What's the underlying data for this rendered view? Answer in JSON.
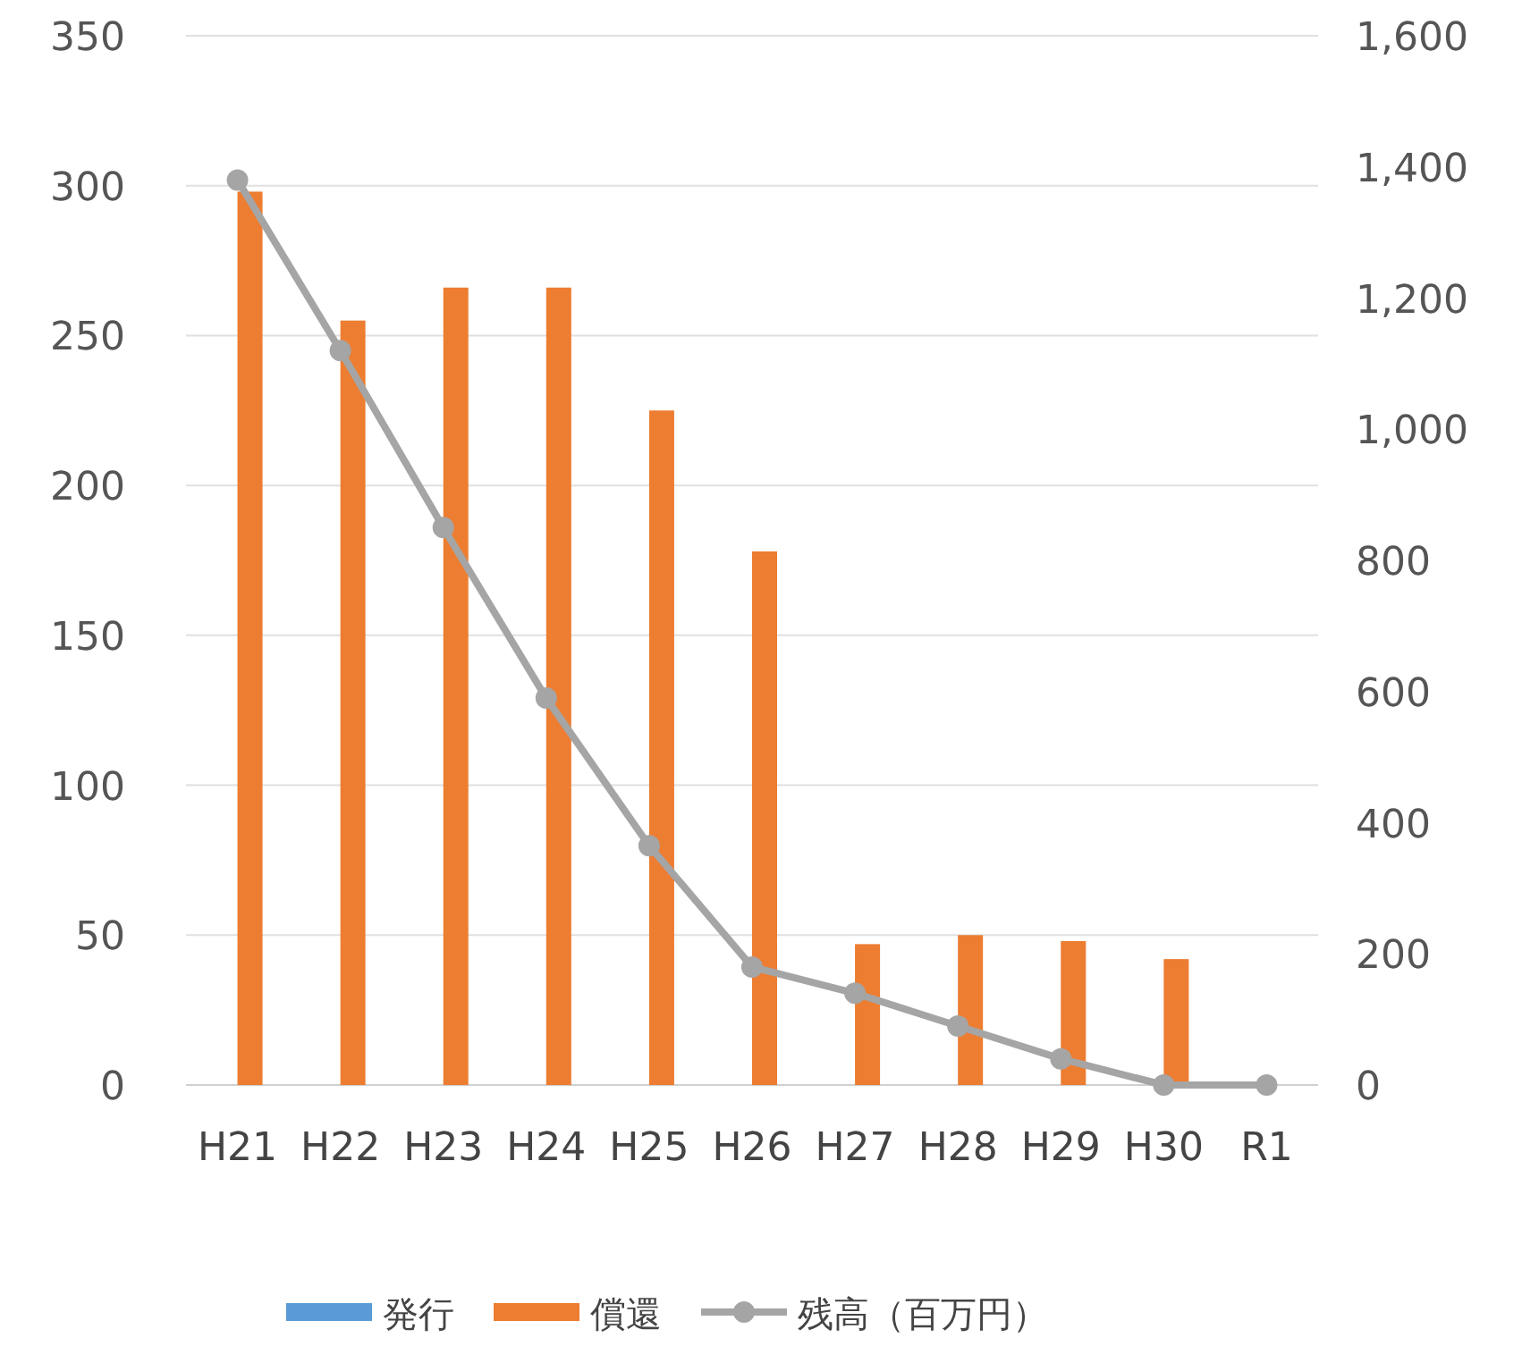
{
  "chart_data": {
    "type": "bar",
    "categories": [
      "H21",
      "H22",
      "H23",
      "H24",
      "H25",
      "H26",
      "H27",
      "H28",
      "H29",
      "H30",
      "R1"
    ],
    "series": [
      {
        "name": "発行",
        "color": "#5b9bd5",
        "values": [
          null,
          null,
          null,
          null,
          null,
          null,
          null,
          null,
          null,
          null,
          null
        ]
      },
      {
        "name": "償還",
        "color": "#ed7d31",
        "values": [
          298,
          255,
          266,
          266,
          225,
          178,
          47,
          50,
          48,
          42,
          null
        ]
      },
      {
        "name": "残高（百万円）",
        "type": "line",
        "axis": "y2",
        "color": "#a5a5a5",
        "marker": "circle",
        "values": [
          1380,
          1120,
          850,
          590,
          365,
          180,
          140,
          90,
          40,
          0,
          0
        ]
      }
    ],
    "ylim": [
      0,
      350
    ],
    "yticks": [
      0,
      50,
      100,
      150,
      200,
      250,
      300,
      350
    ],
    "y2lim": [
      0,
      1600
    ],
    "y2ticks": [
      0,
      {
        "value": 200,
        "label": "200"
      },
      {
        "value": 400,
        "label": "400"
      },
      {
        "value": 600,
        "label": "600"
      },
      {
        "value": 800,
        "label": "800"
      },
      {
        "value": 1000,
        "label": "1,000"
      },
      {
        "value": 1200,
        "label": "1,200"
      },
      {
        "value": 1400,
        "label": "1,400"
      },
      {
        "value": 1600,
        "label": "1,600"
      }
    ],
    "grid": "y",
    "legend": "bottom"
  }
}
